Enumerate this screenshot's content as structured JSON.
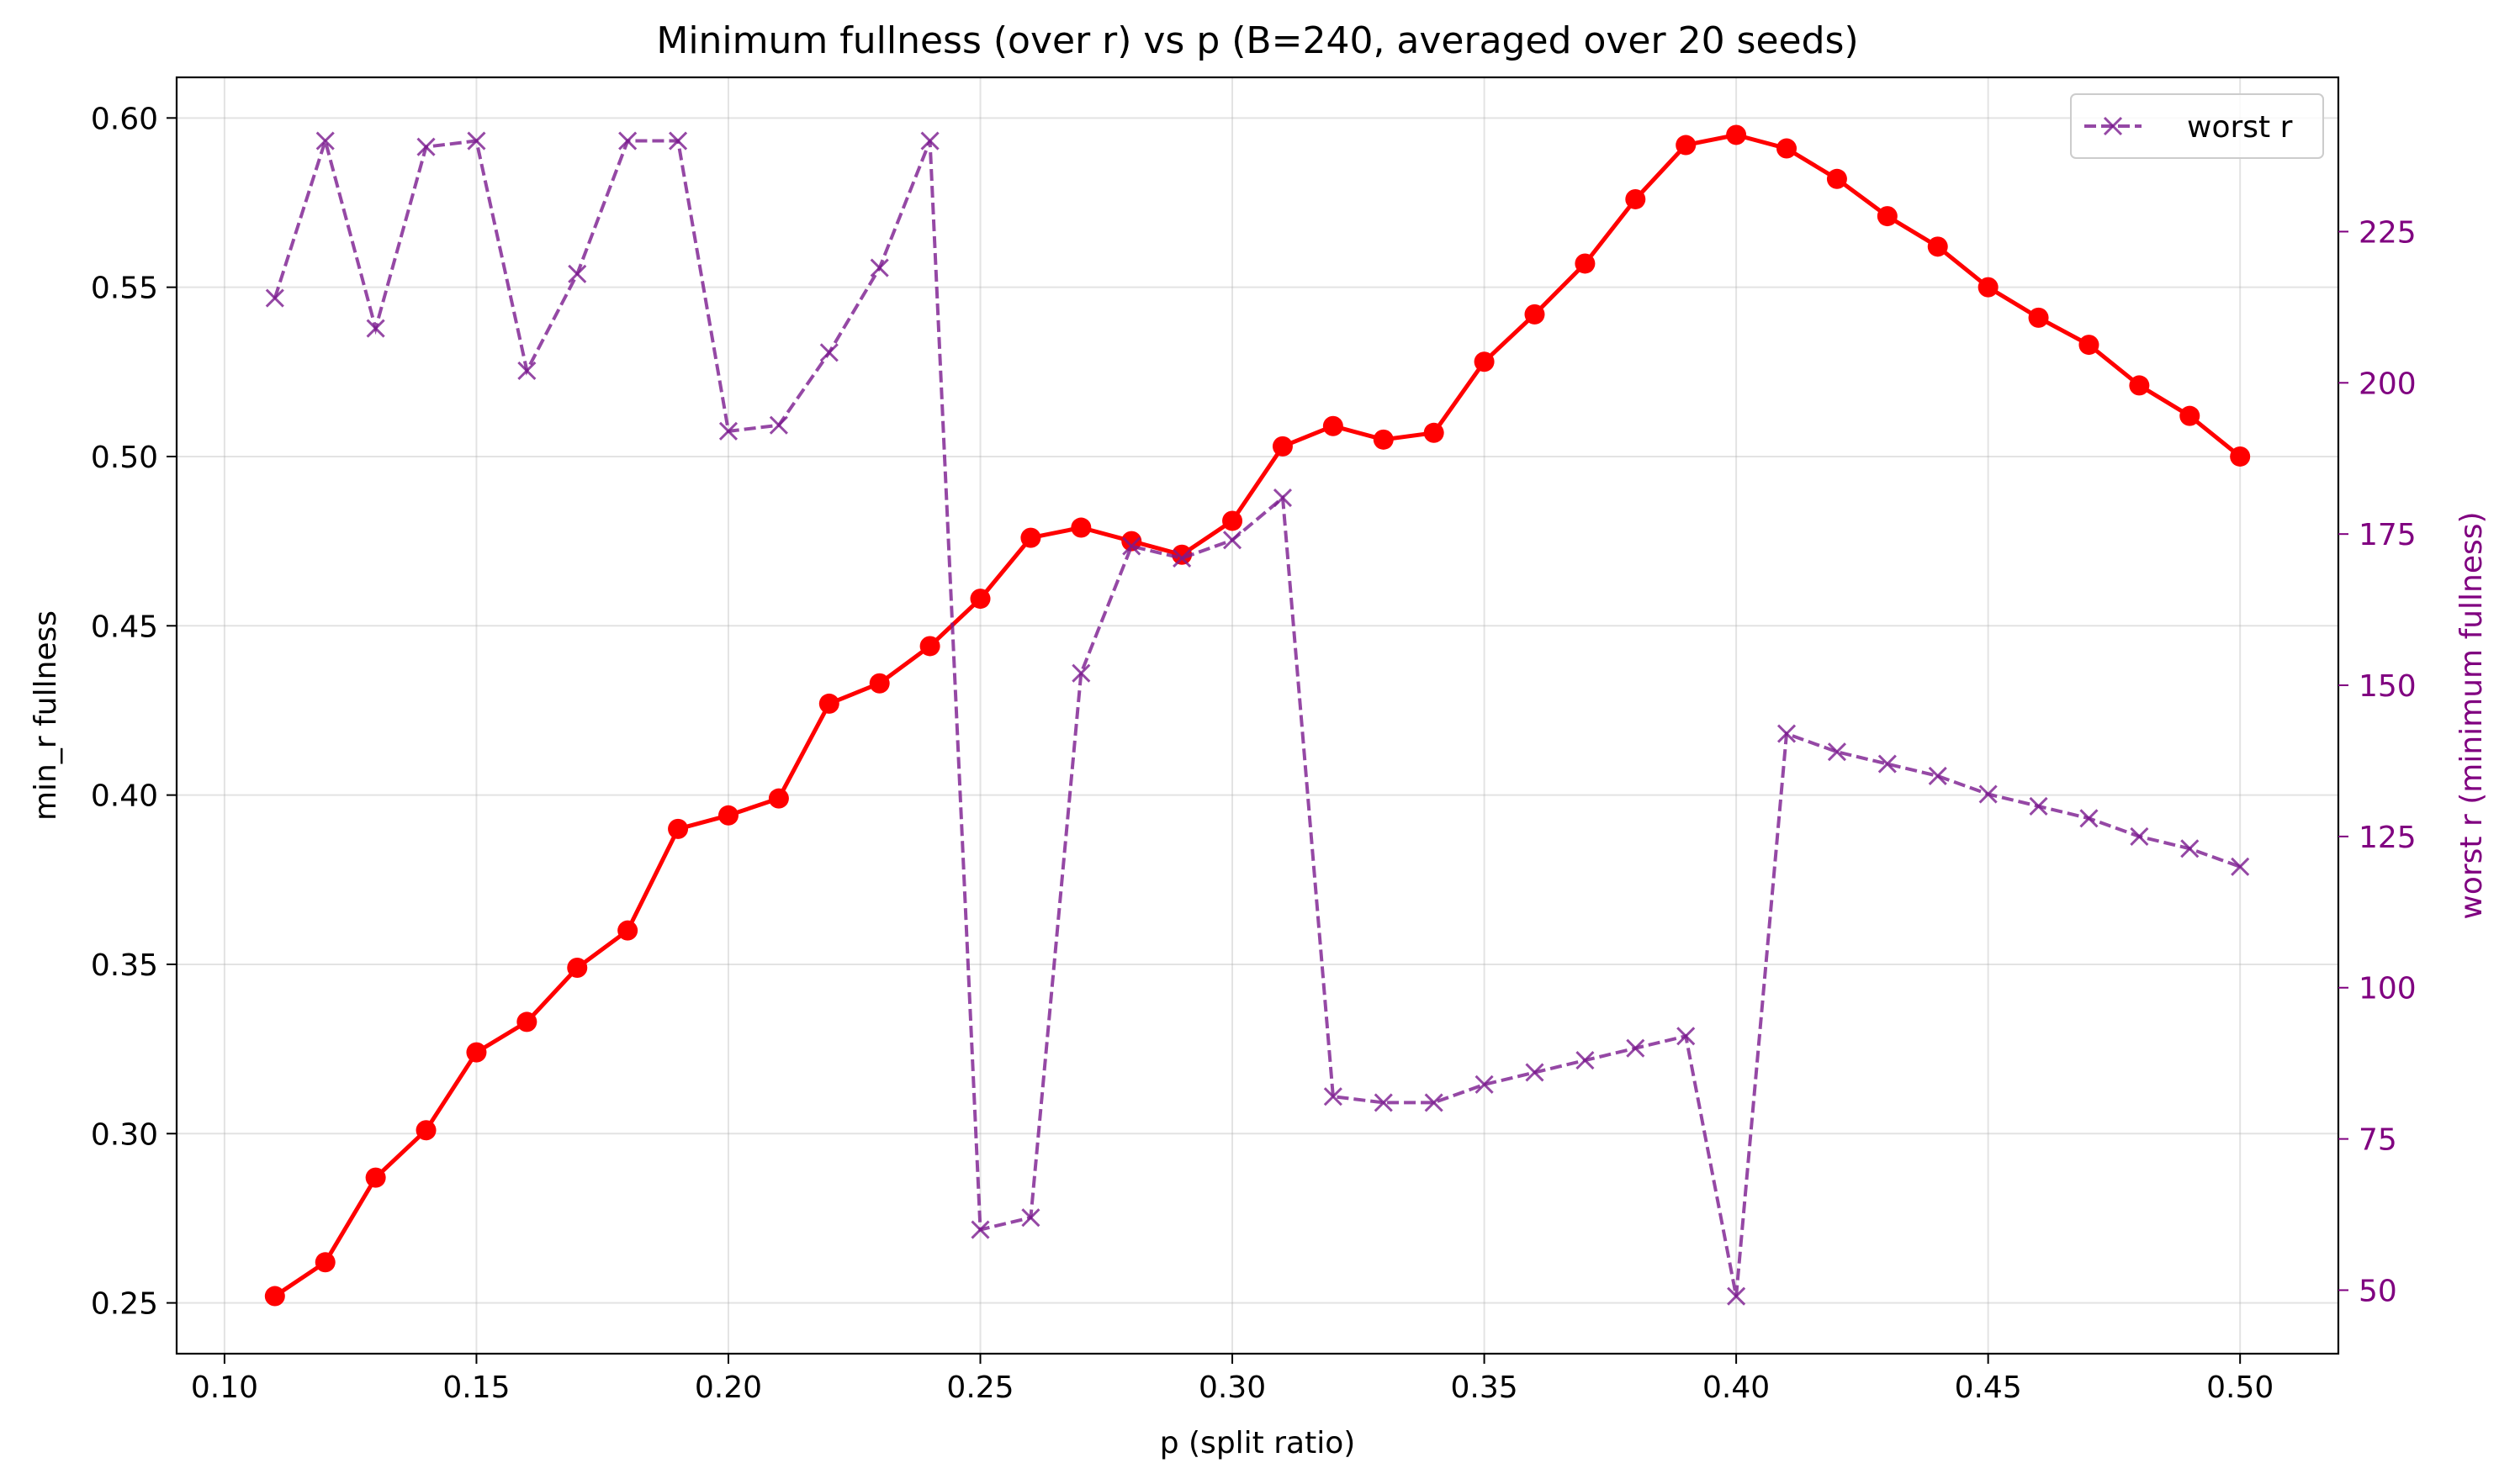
{
  "chart_data": {
    "type": "line",
    "title": "Minimum fullness (over r) vs p (B=240, averaged over 20 seeds)",
    "xlabel": "p (split ratio)",
    "ylabel": "min_r fullness",
    "y2label": "worst r (minimum fullness)",
    "xlim": [
      0.0905,
      0.5195
    ],
    "ylim": [
      0.235,
      0.612
    ],
    "y2lim": [
      39.5,
      250.5
    ],
    "xticks": [
      "0.10",
      "0.15",
      "0.20",
      "0.25",
      "0.30",
      "0.35",
      "0.40",
      "0.45",
      "0.50"
    ],
    "xtick_values": [
      0.1,
      0.15,
      0.2,
      0.25,
      0.3,
      0.35,
      0.4,
      0.45,
      0.5
    ],
    "yticks": [
      "0.25",
      "0.30",
      "0.35",
      "0.40",
      "0.45",
      "0.50",
      "0.55",
      "0.60"
    ],
    "ytick_values": [
      0.25,
      0.3,
      0.35,
      0.4,
      0.45,
      0.5,
      0.55,
      0.6
    ],
    "y2ticks": [
      "50",
      "75",
      "100",
      "125",
      "150",
      "175",
      "200",
      "225"
    ],
    "y2tick_values": [
      50,
      75,
      100,
      125,
      150,
      175,
      200,
      225
    ],
    "grid": true,
    "legend_position": "top-right",
    "x": [
      0.11,
      0.12,
      0.13,
      0.14,
      0.15,
      0.16,
      0.17,
      0.18,
      0.19,
      0.2,
      0.21,
      0.22,
      0.23,
      0.24,
      0.25,
      0.26,
      0.27,
      0.28,
      0.29,
      0.3,
      0.31,
      0.32,
      0.33,
      0.34,
      0.35,
      0.36,
      0.37,
      0.38,
      0.39,
      0.4,
      0.41,
      0.42,
      0.43,
      0.44,
      0.45,
      0.46,
      0.47,
      0.48,
      0.49,
      0.5
    ],
    "series": [
      {
        "axis": "left",
        "color": "#ff0000",
        "marker": "circle",
        "linestyle": "solid",
        "values": [
          0.252,
          0.262,
          0.287,
          0.301,
          0.324,
          0.333,
          0.349,
          0.36,
          0.39,
          0.394,
          0.399,
          0.427,
          0.433,
          0.444,
          0.458,
          0.476,
          0.479,
          0.475,
          0.471,
          0.481,
          0.503,
          0.509,
          0.505,
          0.507,
          0.528,
          0.542,
          0.557,
          0.576,
          0.592,
          0.595,
          0.591,
          0.582,
          0.571,
          0.562,
          0.55,
          0.541,
          0.533,
          0.521,
          0.512,
          0.5
        ]
      },
      {
        "axis": "right",
        "name": "worst r",
        "color": "#7b1a8f",
        "marker": "x",
        "linestyle": "dashed",
        "values": [
          214,
          240,
          209,
          239,
          240,
          202,
          218,
          240,
          240,
          192,
          193,
          205,
          219,
          240,
          60,
          62,
          152,
          173,
          171,
          174,
          181,
          82,
          81,
          81,
          84,
          86,
          88,
          90,
          92,
          49,
          142,
          139,
          137,
          135,
          132,
          130,
          128,
          125,
          123,
          120
        ]
      }
    ],
    "colors": {
      "right_axis": "#800080"
    }
  }
}
